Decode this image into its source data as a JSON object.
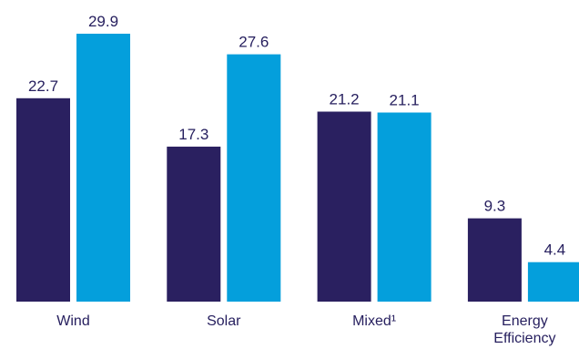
{
  "chart_data": {
    "type": "bar",
    "categories": [
      "Wind",
      "Solar",
      "Mixed¹",
      "Energy Efficiency"
    ],
    "category_lines": [
      [
        "Wind"
      ],
      [
        "Solar"
      ],
      [
        "Mixed¹"
      ],
      [
        "Energy",
        "Efficiency"
      ]
    ],
    "series": [
      {
        "values": [
          22.7,
          17.3,
          21.2,
          9.3
        ],
        "color": "#2a2060"
      },
      {
        "values": [
          29.9,
          27.6,
          21.1,
          4.4
        ],
        "color": "#049fdc"
      }
    ],
    "title": "",
    "xlabel": "",
    "ylabel": "",
    "ylim": [
      0,
      29.9
    ],
    "grid": false,
    "value_labels": true,
    "label_color": "#27205f"
  }
}
